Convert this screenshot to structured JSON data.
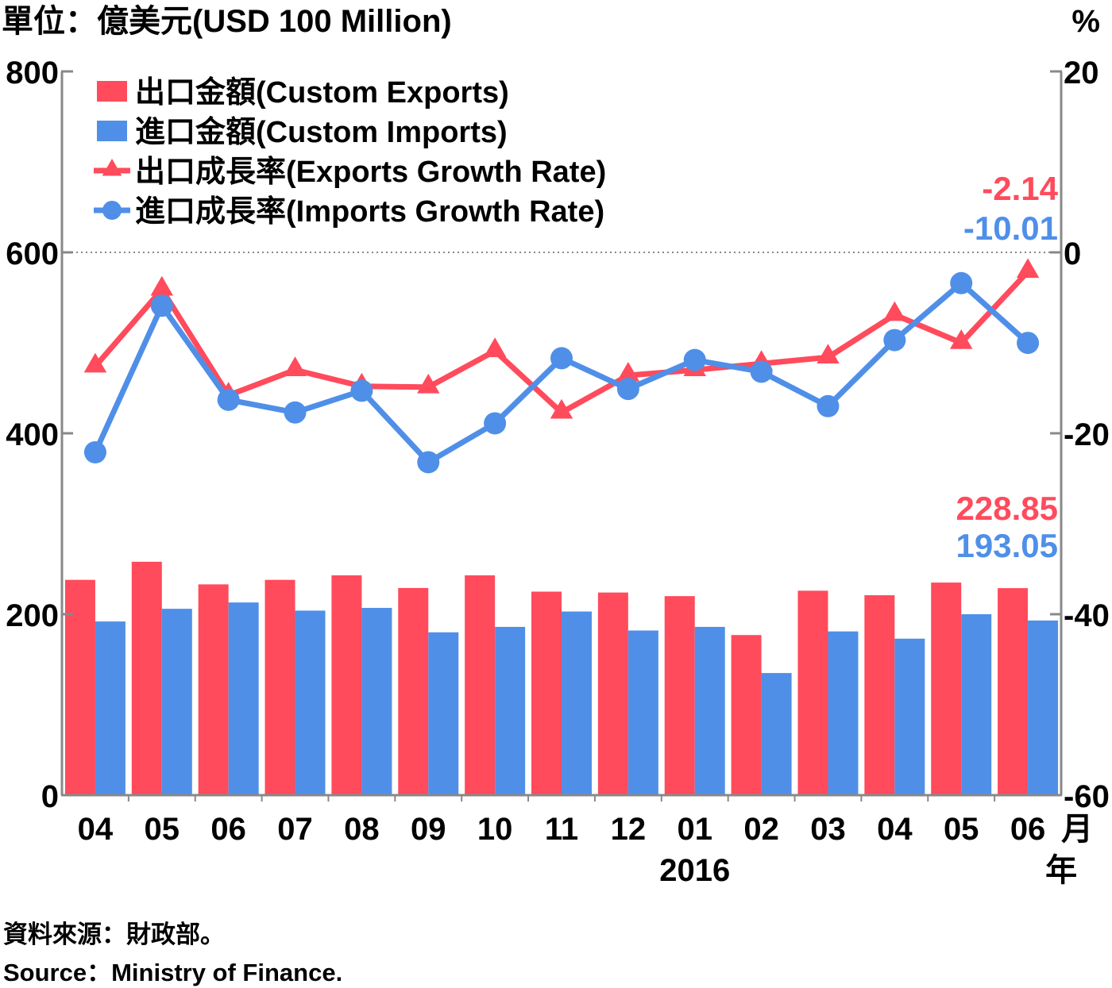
{
  "chart_data": {
    "type": "bar+line",
    "unit_left": "單位：億美元(USD 100 Million)",
    "unit_right": "%",
    "categories": [
      "04",
      "05",
      "06",
      "07",
      "08",
      "09",
      "10",
      "11",
      "12",
      "01",
      "02",
      "03",
      "04",
      "05",
      "06"
    ],
    "x_unit_month": "月",
    "x_unit_year": "年",
    "year_label": "2016",
    "left_axis": {
      "min": 0,
      "max": 800,
      "ticks": [
        "0",
        "200",
        "400",
        "600",
        "800"
      ]
    },
    "right_axis": {
      "min": -60,
      "max": 20,
      "ticks": [
        "-60",
        "-40",
        "-20",
        "0",
        "20"
      ]
    },
    "series": [
      {
        "name": "出口金額(Custom Exports)",
        "kind": "bar",
        "axis": "left",
        "color": "#ff4b5c",
        "values": [
          238,
          258,
          233,
          238,
          243,
          229,
          243,
          225,
          224,
          220,
          177,
          226,
          221,
          235,
          228.85
        ]
      },
      {
        "name": "進口金額(Custom Imports)",
        "kind": "bar",
        "axis": "left",
        "color": "#4f8fe8",
        "values": [
          192,
          206,
          213,
          204,
          207,
          180,
          186,
          203,
          182,
          186,
          135,
          181,
          173,
          200,
          193.05
        ]
      },
      {
        "name": "出口成長率(Exports Growth Rate)",
        "kind": "line",
        "marker": "triangle",
        "axis": "right",
        "color": "#ff4b5c",
        "values": [
          -12.6,
          -4.1,
          -15.8,
          -13.0,
          -14.8,
          -14.9,
          -10.9,
          -17.7,
          -13.6,
          -13.0,
          -12.3,
          -11.6,
          -6.9,
          -10.0,
          -2.14
        ]
      },
      {
        "name": "進口成長率(Imports Growth Rate)",
        "kind": "line",
        "marker": "circle",
        "axis": "right",
        "color": "#4f8fe8",
        "values": [
          -22.1,
          -5.9,
          -16.3,
          -17.7,
          -15.3,
          -23.2,
          -18.9,
          -11.7,
          -15.1,
          -11.9,
          -13.2,
          -17.0,
          -9.7,
          -3.4,
          -10.01
        ]
      }
    ],
    "data_labels": {
      "exports_growth_last": "-2.14",
      "imports_growth_last": "-10.01",
      "exports_last": "228.85",
      "imports_last": "193.05"
    },
    "legend_position": "top-left",
    "reference_line": {
      "axis": "right",
      "value": 0,
      "style": "dotted"
    }
  },
  "source": {
    "zh": "資料來源：財政部。",
    "en": "Source：Ministry of Finance."
  },
  "colors": {
    "exports": "#ff4b5c",
    "imports": "#4f8fe8",
    "axis": "#888888"
  }
}
